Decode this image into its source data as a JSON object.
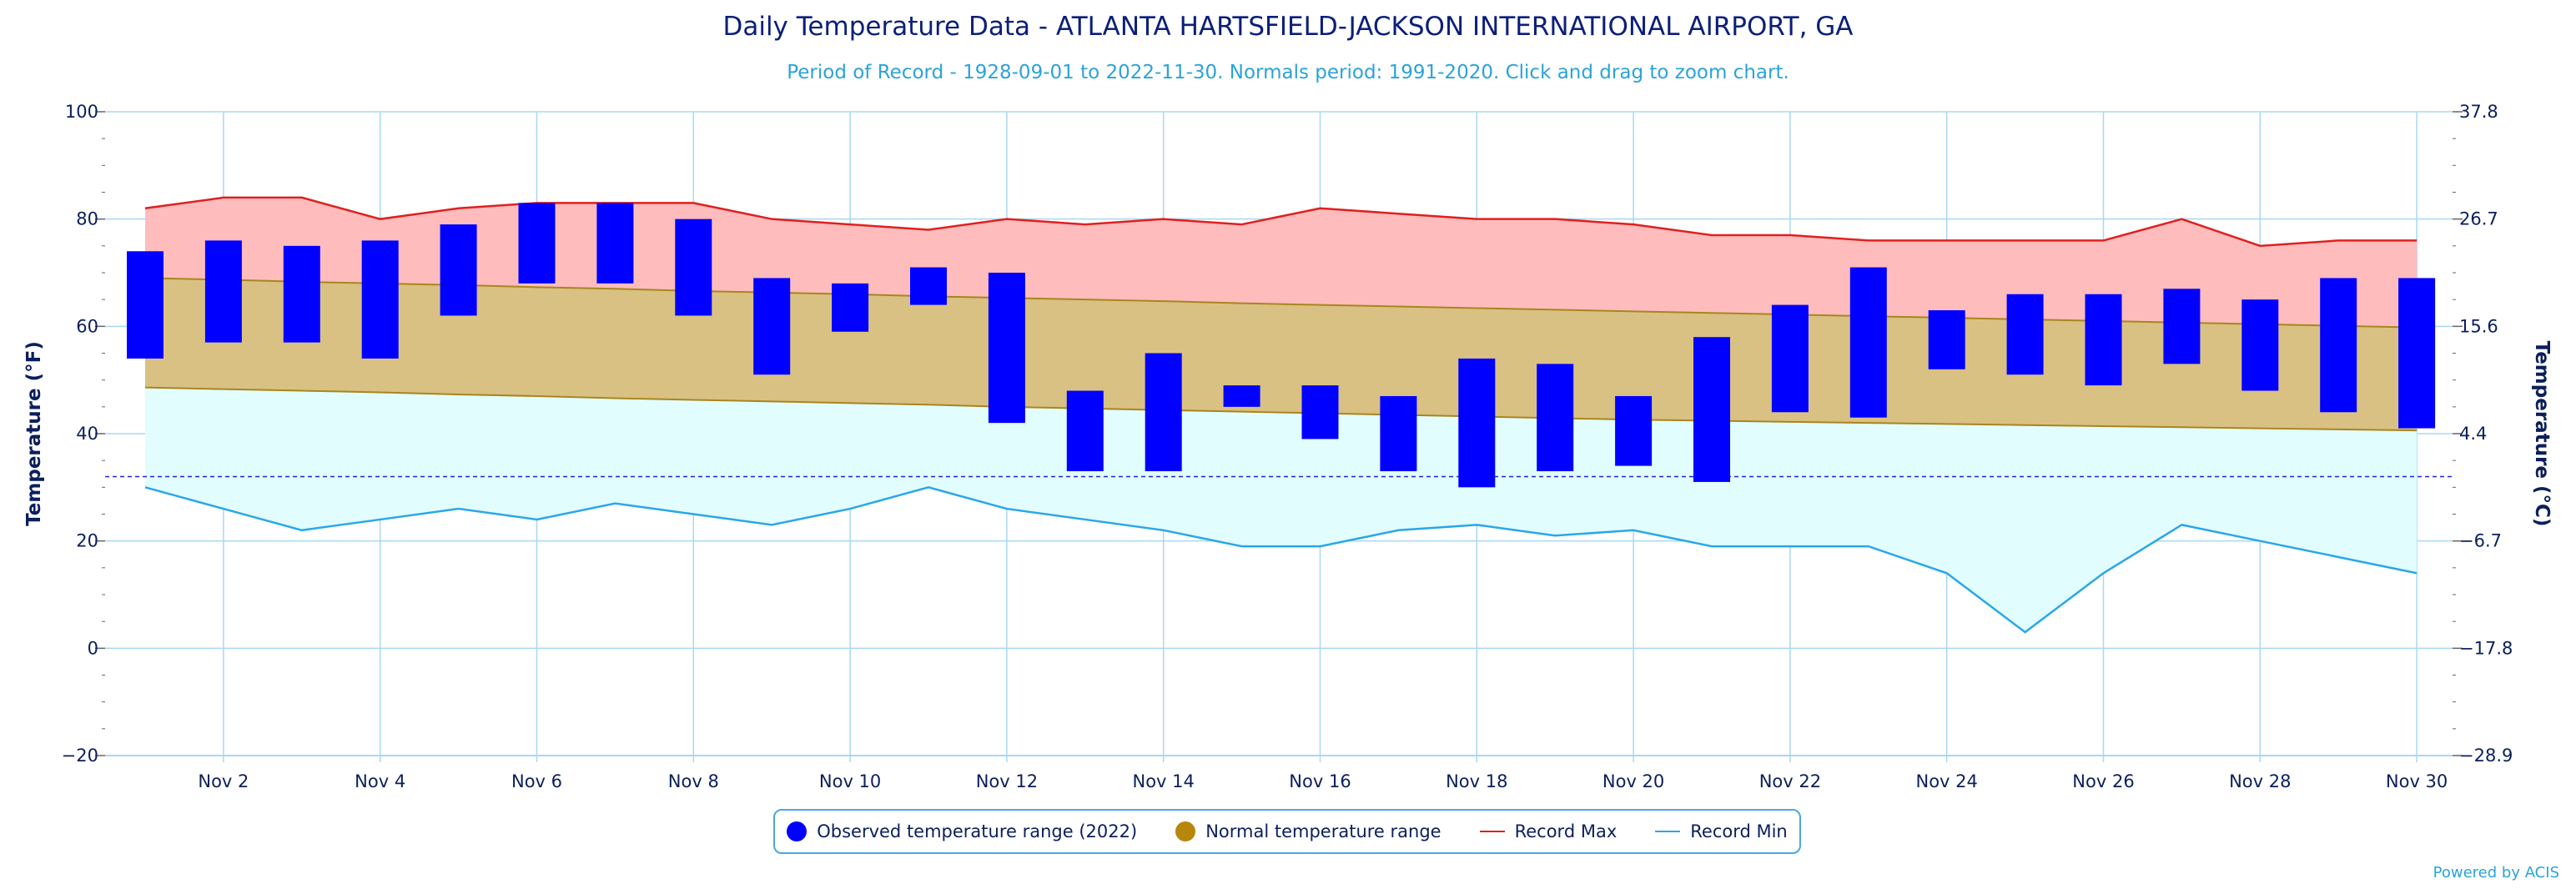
{
  "header": {
    "title": "Daily Temperature Data - ATLANTA HARTSFIELD-JACKSON INTERNATIONAL AIRPORT, GA",
    "subtitle": "Period of Record - 1928-09-01 to 2022-11-30. Normals period: 1991-2020. Click and drag to zoom chart."
  },
  "credit": "Powered by ACIS",
  "colors": {
    "observed": "#0000ff",
    "normal_fill": "#d9c184",
    "normal_line": "#a8861e",
    "normal_legend": "#b8860b",
    "record_max_line": "#e02020",
    "record_max_fill": "#ffbcbc",
    "record_min_line": "#2aa7e8",
    "record_min_fill": "#e2fdfd",
    "grid": "#a8d8f2",
    "axis_text": "#0b1f5c",
    "freezing_line": "#2222dd"
  },
  "legend": [
    {
      "label": "Observed temperature range (2022)",
      "marker": "dot",
      "color": "#0000ff"
    },
    {
      "label": "Normal temperature range",
      "marker": "dot",
      "color": "#b8860b"
    },
    {
      "label": "Record Max",
      "marker": "line",
      "color": "#e02020"
    },
    {
      "label": "Record Min",
      "marker": "line",
      "color": "#2aa7e8"
    }
  ],
  "chart_data": {
    "type": "bar",
    "title": "Daily Temperature Data - ATLANTA HARTSFIELD-JACKSON INTERNATIONAL AIRPORT, GA",
    "subtitle": "Period of Record - 1928-09-01 to 2022-11-30. Normals period: 1991-2020. Click and drag to zoom chart.",
    "ylabel": "Temperature (°F)",
    "y2label": "Temperature (°C)",
    "ylim": [
      -20,
      100
    ],
    "y_ticks": [
      "100",
      "80",
      "60",
      "40",
      "20",
      "0",
      "−20"
    ],
    "y2_ticks": [
      "37.8",
      "26.7",
      "15.6",
      "4.4",
      "−6.7",
      "−17.8",
      "−28.9"
    ],
    "x_tick_labels": [
      "Nov 2",
      "Nov 4",
      "Nov 6",
      "Nov 8",
      "Nov 10",
      "Nov 12",
      "Nov 14",
      "Nov 16",
      "Nov 18",
      "Nov 20",
      "Nov 22",
      "Nov 24",
      "Nov 26",
      "Nov 28",
      "Nov 30"
    ],
    "x_tick_days": [
      2,
      4,
      6,
      8,
      10,
      12,
      14,
      16,
      18,
      20,
      22,
      24,
      26,
      28,
      30
    ],
    "days": [
      1,
      2,
      3,
      4,
      5,
      6,
      7,
      8,
      9,
      10,
      11,
      12,
      13,
      14,
      15,
      16,
      17,
      18,
      19,
      20,
      21,
      22,
      23,
      24,
      25,
      26,
      27,
      28,
      29,
      30
    ],
    "freezing_line": 32,
    "grid": true,
    "legend_position": "bottom-center",
    "series": [
      {
        "name": "Observed temperature range (2022)",
        "type": "range-bar",
        "high": [
          74,
          76,
          75,
          76,
          79,
          83,
          83,
          80,
          69,
          68,
          71,
          70,
          48,
          55,
          49,
          49,
          47,
          54,
          53,
          47,
          58,
          64,
          71,
          63,
          66,
          66,
          67,
          65,
          69,
          69
        ],
        "low": [
          54,
          57,
          57,
          54,
          62,
          68,
          68,
          62,
          51,
          59,
          64,
          42,
          33,
          33,
          45,
          39,
          33,
          30,
          33,
          34,
          31,
          44,
          43,
          52,
          51,
          49,
          53,
          48,
          44,
          41
        ]
      },
      {
        "name": "Normal temperature range",
        "type": "range-area",
        "high": [
          69,
          68.7,
          68.3,
          68,
          67.7,
          67.3,
          67,
          66.6,
          66.3,
          66,
          65.6,
          65.3,
          65,
          64.7,
          64.3,
          64,
          63.7,
          63.4,
          63.1,
          62.8,
          62.5,
          62.2,
          61.9,
          61.6,
          61.3,
          61,
          60.7,
          60.4,
          60.1,
          59.8
        ],
        "low": [
          48.6,
          48.3,
          48,
          47.7,
          47.3,
          47,
          46.6,
          46.3,
          46,
          45.7,
          45.4,
          45,
          44.7,
          44.4,
          44.1,
          43.8,
          43.5,
          43.2,
          42.9,
          42.6,
          42.4,
          42.2,
          42,
          41.8,
          41.6,
          41.4,
          41.2,
          41,
          40.8,
          40.6
        ]
      },
      {
        "name": "Record Max",
        "type": "line",
        "values": [
          82,
          84,
          84,
          80,
          82,
          83,
          83,
          83,
          80,
          79,
          78,
          80,
          79,
          80,
          79,
          82,
          81,
          80,
          80,
          79,
          77,
          77,
          76,
          76,
          76,
          76,
          80,
          75,
          76,
          76
        ]
      },
      {
        "name": "Record Min",
        "type": "line",
        "values": [
          30,
          26,
          22,
          24,
          26,
          24,
          27,
          25,
          23,
          26,
          30,
          26,
          24,
          22,
          19,
          19,
          22,
          23,
          21,
          22,
          19,
          19,
          19,
          14,
          3,
          14,
          23,
          20,
          17,
          14
        ]
      }
    ]
  }
}
